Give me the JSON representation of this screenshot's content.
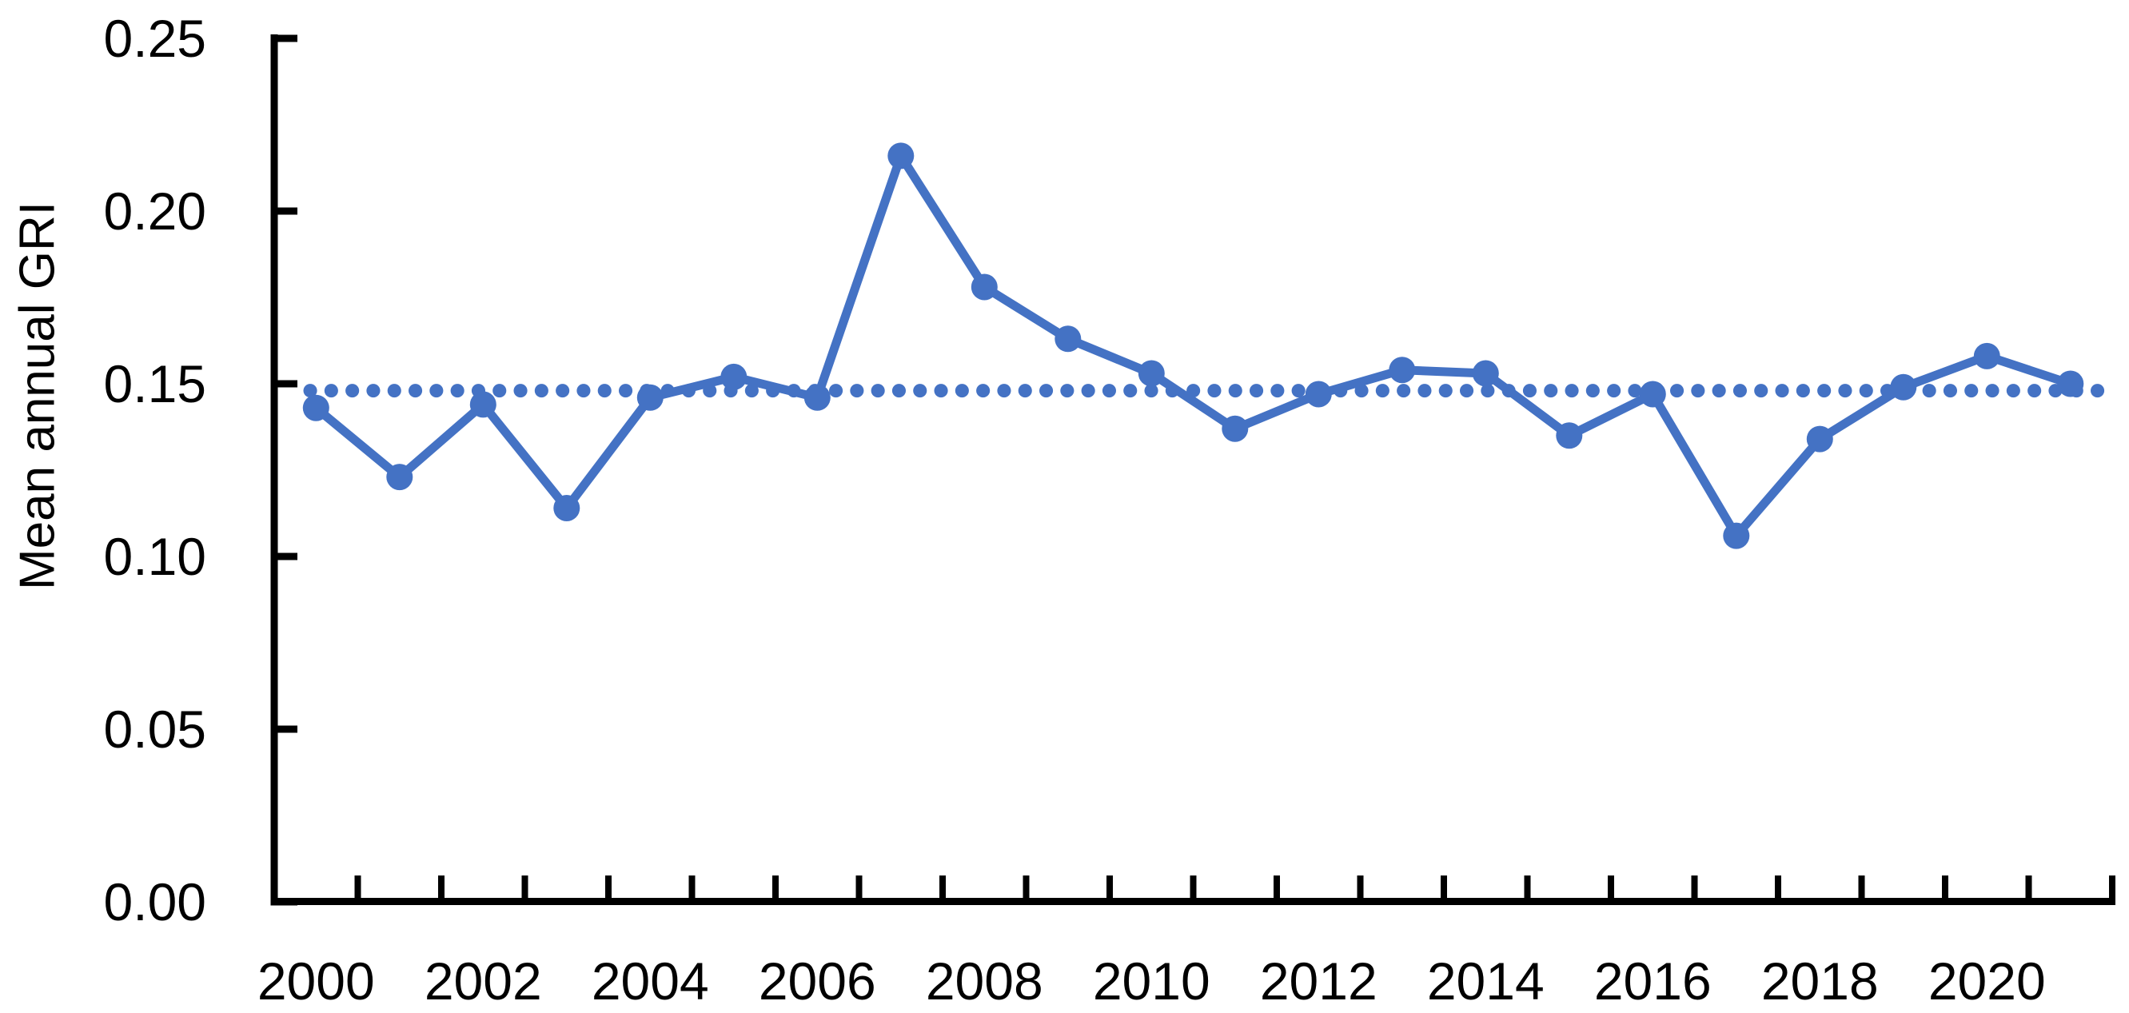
{
  "figure": {
    "background_color": "#ffffff",
    "axis_color": "#000000",
    "accent_color": "#4472C4"
  },
  "chart_data": {
    "type": "line",
    "title": "",
    "xlabel": "",
    "ylabel": "Mean annual GRI",
    "x": [
      2000,
      2001,
      2002,
      2003,
      2004,
      2005,
      2006,
      2007,
      2008,
      2009,
      2010,
      2011,
      2012,
      2013,
      2014,
      2015,
      2016,
      2017,
      2018,
      2019,
      2020,
      2021
    ],
    "series": [
      {
        "name": "Mean annual GRI",
        "color": "#4472C4",
        "marker": "circle",
        "line_style": "solid",
        "values": [
          0.143,
          0.123,
          0.144,
          0.114,
          0.146,
          0.152,
          0.146,
          0.216,
          0.178,
          0.163,
          0.153,
          0.137,
          0.147,
          0.154,
          0.153,
          0.135,
          0.147,
          0.106,
          0.134,
          0.149,
          0.158,
          0.15
        ]
      }
    ],
    "mean_line": {
      "value": 0.148,
      "style": "dotted",
      "color": "#4472C4"
    },
    "ylim": [
      0.0,
      0.25
    ],
    "yticks": [
      "0.00",
      "0.05",
      "0.10",
      "0.15",
      "0.20",
      "0.25"
    ],
    "xtick_labels": [
      "2000",
      "2002",
      "2004",
      "2006",
      "2008",
      "2010",
      "2012",
      "2014",
      "2016",
      "2018",
      "2020"
    ],
    "grid": false,
    "legend": false
  }
}
